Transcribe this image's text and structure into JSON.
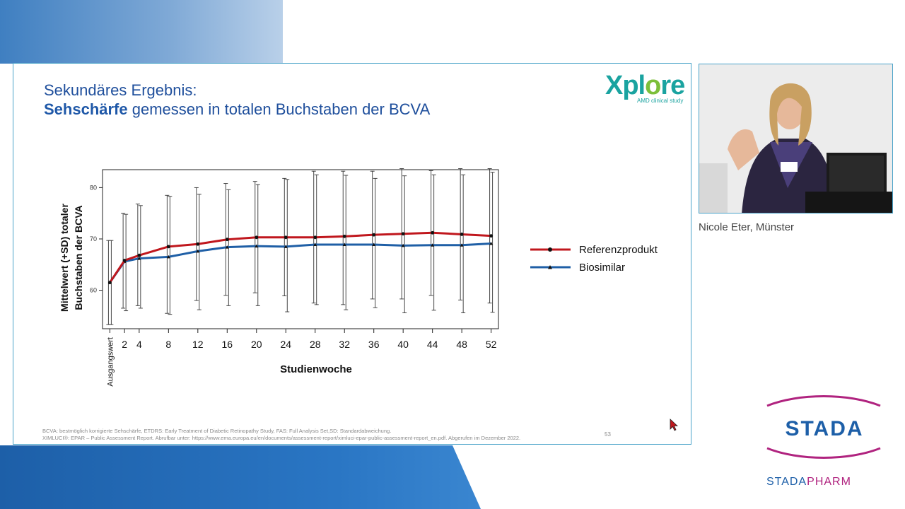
{
  "slide": {
    "title_line1": "Sekundäres Ergebnis:",
    "title_line2_bold": "Sehschärfe",
    "title_line2_rest": " gemessen in totalen Buchstaben der BCVA",
    "logo_main_pre": "Xpl",
    "logo_main_o": "o",
    "logo_main_post": "re",
    "logo_sub": "AMD clinical study",
    "footer_line1": "BCVA: bestmöglich korrigierte Sehschärfe, ETDRS: Early Treatment of Diabetic Retinopathy Study, FAS: Full Analysis Set,SD: Standardabweichung.",
    "footer_line2": "XIMLUCI®: EPAR – Public Assessment Report. Abrufbar unter: https://www.ema.europa.eu/en/documents/assessment-report/ximluci-epar-public-assessment-report_en.pdf. Abgerufen im Dezember 2022.",
    "page_number": "53"
  },
  "speaker": {
    "name": "Nicole Eter, Münster"
  },
  "branding": {
    "stada": "STADA",
    "stadapharm_a": "STADA",
    "stadapharm_b": "PHARM"
  },
  "colors": {
    "reference": "#c0171d",
    "biosimilar": "#1f5fa6",
    "title": "#1f4f9c",
    "accent_magenta": "#b0237f"
  },
  "chart_data": {
    "type": "line",
    "title": "",
    "xlabel": "Studienwoche",
    "ylabel_line1": "Mittelwert (+SD) totaler",
    "ylabel_line2": "Buchstaben der BCVA",
    "x_tick_labels": [
      "Ausgangswert",
      "2",
      "4",
      "8",
      "12",
      "16",
      "20",
      "24",
      "28",
      "32",
      "36",
      "40",
      "44",
      "48",
      "52"
    ],
    "x": [
      0,
      2,
      4,
      8,
      12,
      16,
      20,
      24,
      28,
      32,
      36,
      40,
      44,
      48,
      52
    ],
    "y_ticks": [
      60,
      70,
      80
    ],
    "ylim": [
      52.5,
      83.5
    ],
    "xlim": [
      -1,
      53
    ],
    "legend_position": "right",
    "series": [
      {
        "name": "Referenzprodukt",
        "values": [
          61.5,
          65.8,
          66.8,
          68.5,
          69.0,
          69.9,
          70.3,
          70.3,
          70.3,
          70.5,
          70.8,
          71.0,
          71.2,
          70.9,
          70.6
        ],
        "error_top": [
          69.7,
          75.0,
          76.8,
          78.5,
          80.0,
          80.8,
          81.2,
          81.8,
          83.2,
          83.2,
          83.2,
          83.7,
          83.3,
          83.7,
          83.7
        ],
        "error_bottom": [
          53.3,
          56.5,
          57.0,
          55.5,
          58.0,
          59.0,
          59.5,
          58.9,
          57.5,
          57.2,
          58.3,
          58.3,
          59.0,
          58.1,
          57.5
        ]
      },
      {
        "name": "Biosimilar",
        "values": [
          61.5,
          65.6,
          66.2,
          66.5,
          67.6,
          68.4,
          68.6,
          68.5,
          68.9,
          68.9,
          68.9,
          68.7,
          68.8,
          68.8,
          69.1
        ],
        "error_top": [
          69.7,
          74.8,
          76.5,
          78.3,
          78.7,
          79.6,
          80.6,
          81.6,
          82.5,
          82.4,
          81.8,
          82.3,
          82.5,
          82.5,
          83.0
        ],
        "error_bottom": [
          53.3,
          56.0,
          56.5,
          55.3,
          56.2,
          57.0,
          57.0,
          55.8,
          57.2,
          56.2,
          56.6,
          55.6,
          56.1,
          55.6,
          55.7
        ]
      }
    ]
  }
}
